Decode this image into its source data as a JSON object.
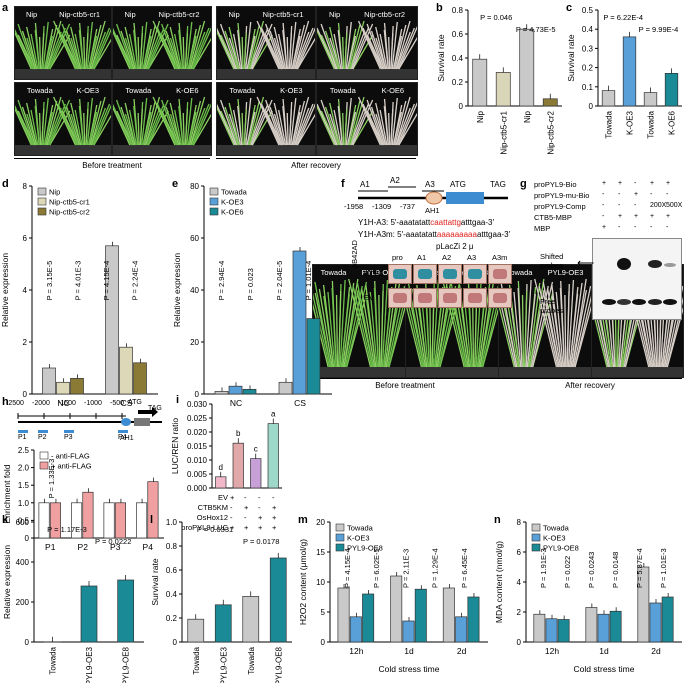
{
  "panels": {
    "a": {
      "label": "a",
      "photos": [
        {
          "left": "Nip",
          "right": "Nip-ctb5-cr1"
        },
        {
          "left": "Nip",
          "right": "Nip-ctb5-cr2"
        },
        {
          "left": "Nip",
          "right": "Nip-ctb5-cr1"
        },
        {
          "left": "Nip",
          "right": "Nip-ctb5-cr2"
        },
        {
          "left": "Towada",
          "right": "K-OE3"
        },
        {
          "left": "Towada",
          "right": "K-OE6"
        },
        {
          "left": "Towada",
          "right": "K-OE3"
        },
        {
          "left": "Towada",
          "right": "K-OE6"
        }
      ],
      "before": "Before treatment",
      "after": "After recovery"
    },
    "j": {
      "label": "j",
      "photos": [
        {
          "left": "Towada",
          "right": "PYL9-OE3"
        },
        {
          "left": "Towada",
          "right": "PYL9-OE8"
        },
        {
          "left": "Towada",
          "right": "PYL9-OE3"
        },
        {
          "left": "Towada",
          "right": "PYL9-OE8"
        }
      ],
      "before": "Before treatment",
      "after": "After recovery"
    },
    "f": {
      "label": "f",
      "regions": [
        "A1",
        "A2",
        "A3",
        "ATG",
        "TAG",
        "AH1"
      ],
      "positions": [
        "-1958",
        "-1309",
        "-737"
      ],
      "seq1_name": "Y1H-A3:",
      "seq1_a": "5′-aaatatatt",
      "seq1_b": "caattattg",
      "seq1_c": "atttgaa-3′",
      "seq2_name": "Y1H-A3m:",
      "seq2_a": "5′-aaatatatt",
      "seq2_b": "aaaaaaaaa",
      "seq2_c": "atttgaa-3′",
      "plasmid": "pLacZi 2 μ",
      "cols": [
        "pro",
        "A1",
        "A2",
        "A3",
        "A3m"
      ],
      "rows": [
        "CTB5",
        "EV"
      ],
      "vlabel": "pB42AD"
    },
    "g": {
      "label": "g",
      "rows": [
        "proPYL9-Bio",
        "proPYL9-mu-Bio",
        "proPYL9-Comp",
        "CTB5-MBP",
        "MBP"
      ],
      "vals": [
        [
          "+",
          "+",
          "-",
          "+",
          "+"
        ],
        [
          "-",
          "-",
          "+",
          "-",
          "-"
        ],
        [
          "-",
          "-",
          "-",
          "200X",
          "500X"
        ],
        [
          "-",
          "+",
          "+",
          "+",
          "+"
        ],
        [
          "+",
          "-",
          "-",
          "-",
          "-"
        ]
      ],
      "shifted": "Shifted probes",
      "free": "Free probes"
    },
    "h": {
      "label": "h",
      "ticks": [
        "-2500",
        "-2000",
        "-1500",
        "-1000",
        "-500"
      ],
      "atg": "ATG",
      "tag": "TAG",
      "ah1": "AH1",
      "probes": [
        "P1",
        "P2",
        "P3",
        "P4"
      ]
    },
    "i": {
      "label": "i",
      "rows": [
        "EV",
        "CTB5KM",
        "OsHox12",
        "proPYL9-LUC"
      ],
      "vals": [
        [
          "+",
          "-",
          "-",
          "-"
        ],
        [
          "-",
          "+",
          "-",
          "+"
        ],
        [
          "-",
          "-",
          "+",
          "+"
        ],
        [
          "+",
          "+",
          "+",
          "+"
        ]
      ]
    }
  },
  "chart_data": [
    {
      "panel": "b",
      "type": "bar",
      "categories": [
        "Nip",
        "Nip-ctb5-cr1",
        "Nip",
        "Nip-ctb5-cr2"
      ],
      "values": [
        0.39,
        0.28,
        0.64,
        0.06
      ],
      "colors": [
        "#c9c9c9",
        "#d9d5b8",
        "#c9c9c9",
        "#8a7a36"
      ],
      "ylabel": "Survival rate",
      "ylim": [
        0,
        0.8
      ],
      "yticks": [
        "0",
        "0.2",
        "0.4",
        "0.6",
        "0.8"
      ],
      "annotations": [
        "P = 0.046",
        "P = 4.73E-5"
      ],
      "stars": [
        "*",
        "***"
      ]
    },
    {
      "panel": "c",
      "type": "bar",
      "categories": [
        "Towada",
        "K-OE3",
        "Towada",
        "K-OE6"
      ],
      "values": [
        0.08,
        0.36,
        0.07,
        0.17
      ],
      "colors": [
        "#c9c9c9",
        "#5aa0d8",
        "#c9c9c9",
        "#1a8a96"
      ],
      "ylabel": "Survival rate",
      "ylim": [
        0,
        0.5
      ],
      "yticks": [
        "0",
        "0.1",
        "0.2",
        "0.3",
        "0.4",
        "0.5"
      ],
      "annotations": [
        "P = 6.22E-4",
        "P = 9.99E-4"
      ],
      "stars": [
        "***",
        "***"
      ]
    },
    {
      "panel": "d",
      "type": "bar",
      "categories": [
        "NC",
        "CS"
      ],
      "series": [
        {
          "name": "Nip",
          "values": [
            1.0,
            5.7
          ]
        },
        {
          "name": "Nip-ctb5-cr1",
          "values": [
            0.45,
            1.8
          ]
        },
        {
          "name": "Nip-ctb5-cr2",
          "values": [
            0.6,
            1.2
          ]
        }
      ],
      "colors": [
        "#c9c9c9",
        "#ddd8b8",
        "#8a7a36"
      ],
      "ylabel": "Relative expression",
      "ylim": [
        0,
        8
      ],
      "yticks": [
        "0",
        "2",
        "4",
        "6",
        "8"
      ],
      "annotations": [
        "P = 3.15E-5",
        "P = 4.01E-3",
        "P = 4.15E-4",
        "P = 2.24E-4"
      ]
    },
    {
      "panel": "e",
      "type": "bar",
      "categories": [
        "NC",
        "CS"
      ],
      "series": [
        {
          "name": "Towada",
          "values": [
            1.0,
            4.5
          ]
        },
        {
          "name": "K-OE3",
          "values": [
            3.0,
            55
          ]
        },
        {
          "name": "K-OE6",
          "values": [
            1.8,
            29
          ]
        }
      ],
      "colors": [
        "#c9c9c9",
        "#5aa0d8",
        "#1a8a96"
      ],
      "ylabel": "Relative expression",
      "ylim": [
        0,
        80
      ],
      "yticks": [
        "0",
        "20",
        "40",
        "60",
        "80"
      ],
      "annotations": [
        "P = 2.94E-4",
        "P = 0.023",
        "P = 2.04E-5",
        "P = 1.01E-4"
      ]
    },
    {
      "panel": "h",
      "type": "bar",
      "categories": [
        "P1",
        "P2",
        "P3",
        "P4"
      ],
      "series": [
        {
          "name": "- anti-FLAG",
          "values": [
            1.0,
            1.0,
            1.0,
            1.0
          ]
        },
        {
          "name": "+ anti-FLAG",
          "values": [
            1.0,
            1.3,
            1.0,
            1.6
          ]
        }
      ],
      "colors": [
        "#ffffff",
        "#f0a0a0"
      ],
      "ylabel": "Enrichment fold",
      "ylim": [
        0,
        2.5
      ],
      "yticks": [
        "0",
        "0.5",
        "1.0",
        "1.5",
        "2.0",
        "2.5"
      ],
      "annotations": [
        "P = 1.33E-3"
      ]
    },
    {
      "panel": "i",
      "type": "bar",
      "categories": [
        "1",
        "2",
        "3",
        "4"
      ],
      "values": [
        0.004,
        0.016,
        0.0105,
        0.023
      ],
      "colors": [
        "#f0b8c8",
        "#e0a8a8",
        "#c8a0d8",
        "#9ed8c8"
      ],
      "ylabel": "LUC/REN ratio",
      "ylim": [
        0,
        0.03
      ],
      "yticks": [
        "0.000",
        "0.005",
        "0.010",
        "0.015",
        "0.020",
        "0.025",
        "0.030"
      ],
      "letters": [
        "d",
        "b",
        "c",
        "a"
      ]
    },
    {
      "panel": "k",
      "type": "bar",
      "categories": [
        "Towada",
        "PYL9-OE3",
        "PYL9-OE8"
      ],
      "values": [
        1,
        280,
        310
      ],
      "colors": [
        "#c9c9c9",
        "#1a8a96",
        "#1a8a96"
      ],
      "ylabel": "Relative expression",
      "ylim": [
        0,
        600
      ],
      "yticks": [
        "0",
        "200",
        "400",
        "600"
      ],
      "annotations": [
        "P = 1.17E-3",
        "P = 0.0222"
      ]
    },
    {
      "panel": "l",
      "type": "bar",
      "categories": [
        "Towada",
        "PYL9-OE3",
        "Towada",
        "PYL9-OE8"
      ],
      "values": [
        0.19,
        0.31,
        0.38,
        0.7
      ],
      "colors": [
        "#c9c9c9",
        "#1a8a96",
        "#c9c9c9",
        "#1a8a96"
      ],
      "ylabel": "Survival rate",
      "ylim": [
        0,
        1.0
      ],
      "yticks": [
        "0",
        "0.2",
        "0.4",
        "0.6",
        "0.8",
        "1.0"
      ],
      "annotations": [
        "P = 0.0331",
        "P = 0.0178"
      ]
    },
    {
      "panel": "m",
      "type": "bar",
      "categories": [
        "12h",
        "1d",
        "2d"
      ],
      "series": [
        {
          "name": "Towada",
          "values": [
            9,
            11,
            9
          ]
        },
        {
          "name": "K-OE3",
          "values": [
            4.2,
            3.5,
            4.2
          ]
        },
        {
          "name": "PYL9-OE8",
          "values": [
            8,
            8.8,
            7.5
          ]
        }
      ],
      "colors": [
        "#c9c9c9",
        "#5aa0d8",
        "#1a8a96"
      ],
      "ylabel": "H2O2 content (μmol/g)",
      "xlabel": "Cold stress time",
      "ylim": [
        0,
        20
      ],
      "yticks": [
        "0",
        "5",
        "10",
        "15",
        "20"
      ],
      "annotations": [
        "P = 4.15E-4",
        "P = 6.02E-5",
        "P = 2.11E-3",
        "P = 1.29E-4",
        "P = 6.45E-4"
      ]
    },
    {
      "panel": "n",
      "type": "bar",
      "categories": [
        "12h",
        "1d",
        "2d"
      ],
      "series": [
        {
          "name": "Towada",
          "values": [
            1.85,
            2.3,
            5.0
          ]
        },
        {
          "name": "K-OE3",
          "values": [
            1.55,
            1.85,
            2.6
          ]
        },
        {
          "name": "PYL9-OE8",
          "values": [
            1.5,
            2.05,
            3.0
          ]
        }
      ],
      "colors": [
        "#c9c9c9",
        "#5aa0d8",
        "#1a8a96"
      ],
      "ylabel": "MDA content (nmol/g)",
      "xlabel": "Cold stress time",
      "ylim": [
        0,
        8
      ],
      "yticks": [
        "0",
        "2",
        "4",
        "6",
        "8"
      ],
      "annotations": [
        "P = 1.91E-3",
        "P = 0.022",
        "P = 0.0243",
        "P = 0.0148",
        "P = 5.87E-4",
        "P = 1.01E-3"
      ]
    }
  ]
}
